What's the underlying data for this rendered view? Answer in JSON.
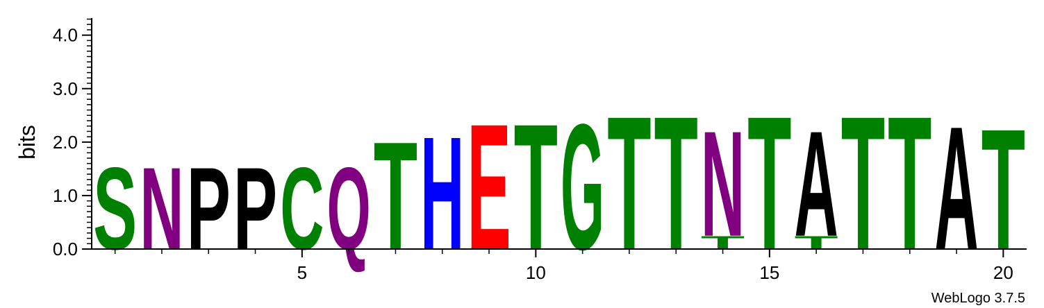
{
  "chart_data": {
    "type": "sequence-logo",
    "ylabel": "bits",
    "ylim": [
      0,
      4.32
    ],
    "y_ticks": [
      "0.0",
      "1.0",
      "2.0",
      "3.0",
      "4.0"
    ],
    "y_tick_values": [
      0,
      1,
      2,
      3,
      4
    ],
    "x_ticks": [
      "5",
      "10",
      "15",
      "20"
    ],
    "x_tick_values": [
      5,
      10,
      15,
      20
    ],
    "x_range": [
      0.5,
      20.5
    ],
    "positions": [
      {
        "pos": 1,
        "stack": [
          {
            "letter": "S",
            "bits": 1.6
          }
        ]
      },
      {
        "pos": 2,
        "stack": [
          {
            "letter": "N",
            "bits": 1.6
          }
        ]
      },
      {
        "pos": 3,
        "stack": [
          {
            "letter": "P",
            "bits": 1.6
          }
        ]
      },
      {
        "pos": 4,
        "stack": [
          {
            "letter": "P",
            "bits": 1.6
          }
        ]
      },
      {
        "pos": 5,
        "stack": [
          {
            "letter": "C",
            "bits": 1.6
          }
        ]
      },
      {
        "pos": 6,
        "stack": [
          {
            "letter": "Q",
            "bits": 1.6
          }
        ]
      },
      {
        "pos": 7,
        "stack": [
          {
            "letter": "T",
            "bits": 2.1
          }
        ]
      },
      {
        "pos": 8,
        "stack": [
          {
            "letter": "H",
            "bits": 2.2
          }
        ]
      },
      {
        "pos": 9,
        "stack": [
          {
            "letter": "E",
            "bits": 2.45
          }
        ]
      },
      {
        "pos": 10,
        "stack": [
          {
            "letter": "T",
            "bits": 2.45
          }
        ]
      },
      {
        "pos": 11,
        "stack": [
          {
            "letter": "G",
            "bits": 2.45
          }
        ]
      },
      {
        "pos": 12,
        "stack": [
          {
            "letter": "T",
            "bits": 2.6
          }
        ]
      },
      {
        "pos": 13,
        "stack": [
          {
            "letter": "T",
            "bits": 2.6
          }
        ]
      },
      {
        "pos": 14,
        "stack": [
          {
            "letter": "T",
            "bits": 0.25
          },
          {
            "letter": "N",
            "bits": 2.05
          }
        ]
      },
      {
        "pos": 15,
        "stack": [
          {
            "letter": "T",
            "bits": 2.6
          }
        ]
      },
      {
        "pos": 16,
        "stack": [
          {
            "letter": "T",
            "bits": 0.25
          },
          {
            "letter": "A",
            "bits": 2.05
          }
        ]
      },
      {
        "pos": 17,
        "stack": [
          {
            "letter": "T",
            "bits": 2.6
          }
        ]
      },
      {
        "pos": 18,
        "stack": [
          {
            "letter": "T",
            "bits": 2.6
          }
        ]
      },
      {
        "pos": 19,
        "stack": [
          {
            "letter": "A",
            "bits": 2.4
          }
        ]
      },
      {
        "pos": 20,
        "stack": [
          {
            "letter": "T",
            "bits": 2.35
          }
        ]
      }
    ],
    "letter_colors": {
      "S": "#008000",
      "T": "#008000",
      "G": "#008000",
      "C": "#008000",
      "N": "#800080",
      "Q": "#800080",
      "P": "#000000",
      "A": "#000000",
      "H": "#0000ff",
      "E": "#ff0000"
    },
    "credit": "WebLogo 3.7.5"
  }
}
